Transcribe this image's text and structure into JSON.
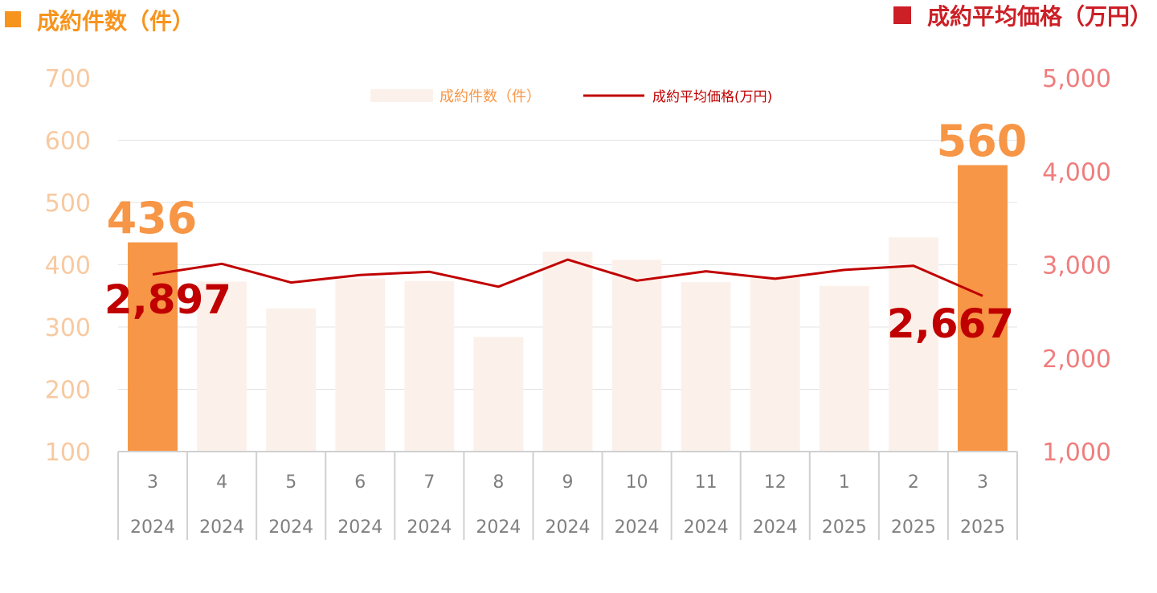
{
  "chart_data": {
    "type": "bar+line",
    "left_title": "成約件数（件）",
    "right_title": "成約平均価格（万円）",
    "legend": [
      "成約件数（件）",
      "成約平均価格(万円)"
    ],
    "left_axis": {
      "ylim": [
        100,
        700
      ],
      "ticks": [
        "100",
        "200",
        "300",
        "400",
        "500",
        "600",
        "700"
      ]
    },
    "right_axis": {
      "ylim": [
        1000,
        5000
      ],
      "ticks": [
        "1,000",
        "2,000",
        "3,000",
        "4,000",
        "5,000"
      ]
    },
    "months": [
      "3",
      "4",
      "5",
      "6",
      "7",
      "8",
      "9",
      "10",
      "11",
      "12",
      "1",
      "2",
      "3"
    ],
    "years": [
      "2024",
      "2024",
      "2024",
      "2024",
      "2024",
      "2024",
      "2024",
      "2024",
      "2024",
      "2024",
      "2025",
      "2025",
      "2025"
    ],
    "series": [
      {
        "name": "成約件数（件）",
        "axis": "left",
        "values": [
          436,
          373,
          330,
          378,
          374,
          284,
          421,
          408,
          372,
          381,
          366,
          444,
          560
        ]
      },
      {
        "name": "成約平均価格(万円)",
        "axis": "right",
        "values": [
          2897,
          3010,
          2810,
          2890,
          2925,
          2765,
          3055,
          2830,
          2930,
          2850,
          2945,
          2990,
          2667
        ]
      }
    ],
    "highlight_labels": {
      "first_bar": "436",
      "last_bar": "560",
      "first_line": "2,897",
      "last_line": "2,667"
    },
    "grid": true,
    "legend_position": "top-center"
  },
  "colors": {
    "bar_highlight": "#F79646",
    "bar_normal": "#FCF1EA",
    "line": "#C00000",
    "left_axis_text": "#F8C9A0",
    "right_axis_text": "#F07D7D",
    "left_title": "#F7941D",
    "right_title": "#CC1F26",
    "grid": "#E3E3E3",
    "cat_text": "#7F7F7F"
  }
}
